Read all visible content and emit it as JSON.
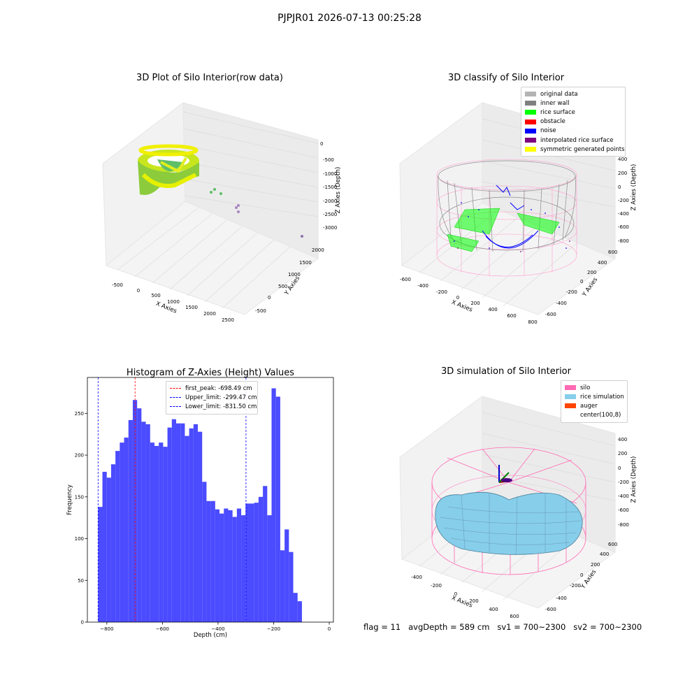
{
  "suptitle": "PJPJR01 2026-07-13 00:25:28",
  "footer": "flag = 11   avgDepth = 589 cm   sv1 = 700~2300   sv2 = 700~2300",
  "panels": {
    "raw": {
      "title": "3D Plot of Silo Interior(row data)",
      "xlabel": "X Axies",
      "ylabel": "Y Axies",
      "zlabel": "Z Axies (Depth)",
      "xticks": [
        "-500",
        "0",
        "500",
        "1000",
        "1500",
        "2000",
        "2500"
      ],
      "yticks": [
        "-500",
        "0",
        "500",
        "1000",
        "1500",
        "2000"
      ],
      "zticks": [
        "0",
        "-500",
        "-1000",
        "-1500",
        "-2000",
        "-2500",
        "-3000"
      ]
    },
    "classify": {
      "title": "3D classify of Silo Interior",
      "xlabel": "X Axies",
      "ylabel": "Y Axies",
      "zlabel": "Z Axies (Depth)",
      "xticks": [
        "-600",
        "-400",
        "-200",
        "0",
        "200",
        "400",
        "600",
        "800"
      ],
      "yticks": [
        "-600",
        "-400",
        "-200",
        "0",
        "200",
        "400",
        "600"
      ],
      "zticks": [
        "400",
        "200",
        "0",
        "-200",
        "-400",
        "-600",
        "-800"
      ],
      "legend": [
        {
          "label": "original data",
          "color": "#b4b4b4"
        },
        {
          "label": "inner wall",
          "color": "#808080"
        },
        {
          "label": "rice surface",
          "color": "#00ff00"
        },
        {
          "label": "obstacle",
          "color": "#ff0000"
        },
        {
          "label": "noise",
          "color": "#0000ff"
        },
        {
          "label": "interpolated rice surface",
          "color": "#800080"
        },
        {
          "label": "symmetric generated points",
          "color": "#ffff00"
        }
      ]
    },
    "simulation": {
      "title": "3D simulation of Silo Interior",
      "xlabel": "X Axies",
      "ylabel": "Y Axies",
      "zlabel": "Z Axies (Depth)",
      "xticks": [
        "-400",
        "-200",
        "0",
        "200",
        "400",
        "600"
      ],
      "yticks": [
        "-600",
        "-400",
        "-200",
        "0",
        "200",
        "400",
        "600"
      ],
      "zticks": [
        "400",
        "200",
        "0",
        "-200",
        "-400",
        "-600",
        "-800"
      ],
      "legend": [
        {
          "label": "silo",
          "color": "#ff69b4"
        },
        {
          "label": "rice simulation",
          "color": "#87ceeb"
        },
        {
          "label": "auger",
          "color": "#ff4500"
        },
        {
          "label": "center(100,8)",
          "color": "#ffffff"
        }
      ]
    }
  },
  "chart_data": {
    "type": "bar",
    "title": "Histogram of Z-Axies (Height) Values",
    "xlabel": "Depth (cm)",
    "ylabel": "Frequency",
    "xlim": [
      -870,
      15
    ],
    "ylim": [
      0,
      293
    ],
    "xticks": [
      -800,
      -600,
      -400,
      -200,
      0
    ],
    "yticks": [
      0,
      50,
      100,
      150,
      200,
      250
    ],
    "bin_start": -831.5,
    "bin_width": 15.6,
    "color": "#4b4bff",
    "values": [
      138,
      180,
      173,
      189,
      205,
      215,
      221,
      242,
      266,
      256,
      240,
      237,
      215,
      211,
      215,
      210,
      233,
      243,
      238,
      238,
      223,
      232,
      237,
      228,
      168,
      145,
      145,
      135,
      130,
      136,
      134,
      126,
      136,
      128,
      142,
      142,
      143,
      150,
      163,
      128,
      280,
      270,
      86,
      111,
      84,
      35,
      25
    ],
    "vlines": [
      {
        "label": "first_peak: -698.49 cm",
        "x": -698.49,
        "color": "#ff0000"
      },
      {
        "label": "Upper_limit: -299.47 cm",
        "x": -299.47,
        "color": "#0000ff"
      },
      {
        "label": "Lower_limit: -831.50 cm",
        "x": -831.5,
        "color": "#0000ff"
      }
    ]
  }
}
